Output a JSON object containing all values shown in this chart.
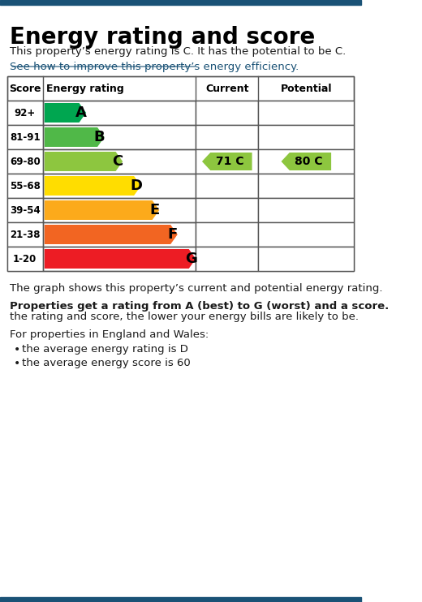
{
  "title": "Energy rating and score",
  "subtitle_normal": "This property’s energy rating is C. It has the potential to be C.",
  "link_text": "See how to improve this property’s energy efficiency.",
  "ratings": [
    "A",
    "B",
    "C",
    "D",
    "E",
    "F",
    "G"
  ],
  "scores": [
    "92+",
    "81-91",
    "69-80",
    "55-68",
    "39-54",
    "21-38",
    "1-20"
  ],
  "colors": [
    "#00a650",
    "#50b848",
    "#8dc63f",
    "#ffdd00",
    "#fcaa1b",
    "#f26522",
    "#ed1c24"
  ],
  "bar_widths": [
    1.5,
    2.0,
    2.5,
    3.0,
    3.5,
    4.0,
    4.5
  ],
  "current_rating": "C",
  "current_score": 71,
  "potential_rating": "C",
  "potential_score": 80,
  "arrow_color": "#8dc63f",
  "col_header_score": "Score",
  "col_header_rating": "Energy rating",
  "col_header_current": "Current",
  "col_header_potential": "Potential",
  "footer_line1": "The graph shows this property’s current and potential energy rating.",
  "footer_bold": "Properties get a rating from A (best) to G (worst) and a score.",
  "footer_line2": " The better\nthe rating and score, the lower your energy bills are likely to be.",
  "footer_line3": "For properties in England and Wales:",
  "bullet1": "the average energy rating is D",
  "bullet2": "the average energy score is 60",
  "bg_color": "#ffffff",
  "border_color": "#1a5276",
  "table_border_color": "#555555",
  "text_color": "#1a1a1a"
}
